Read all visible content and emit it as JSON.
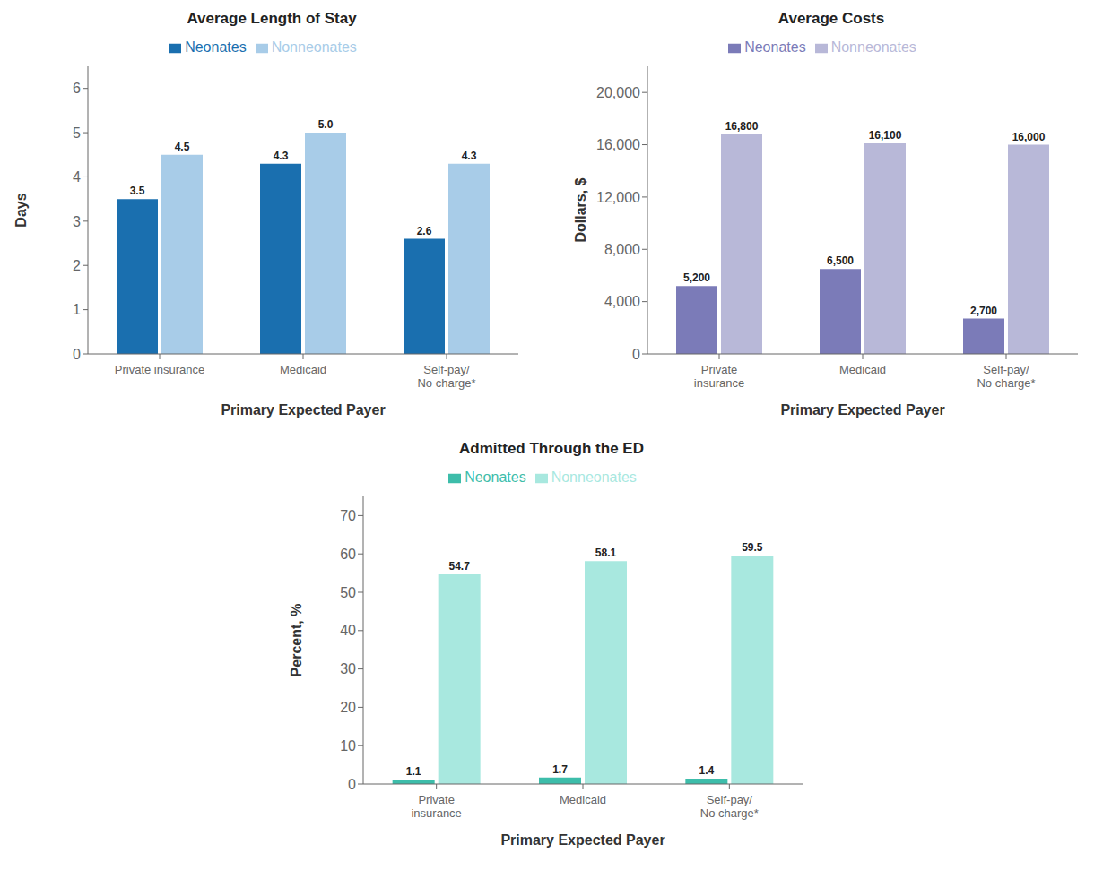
{
  "chart_data": [
    {
      "type": "bar",
      "title": "Average Length of Stay",
      "ylabel": "Days",
      "xlabel": "Primary Expected Payer",
      "categories": [
        "Private insurance",
        "Medicaid",
        "Self-pay/\nNo charge*"
      ],
      "series": [
        {
          "name": "Neonates",
          "color": "#1a6faf",
          "values": [
            3.5,
            4.3,
            2.6
          ],
          "value_labels": [
            "3.5",
            "4.3",
            "2.6"
          ]
        },
        {
          "name": "Nonneonates",
          "color": "#a8cce8",
          "values": [
            4.5,
            5.0,
            4.3
          ],
          "value_labels": [
            "4.5",
            "5.0",
            "4.3"
          ]
        }
      ],
      "ylim": [
        0,
        6.5
      ],
      "yticks": [
        0,
        1,
        2,
        3,
        4,
        5,
        6
      ],
      "grid": false,
      "legend": "top",
      "data_labels": true
    },
    {
      "type": "bar",
      "title": "Average Costs",
      "ylabel": "Dollars, $",
      "xlabel": "Primary Expected Payer",
      "categories": [
        "Private\ninsurance",
        "Medicaid",
        "Self-pay/\nNo charge*"
      ],
      "series": [
        {
          "name": "Neonates",
          "color": "#7b7bb8",
          "values": [
            5200,
            6500,
            2700
          ],
          "value_labels": [
            "5,200",
            "6,500",
            "2,700"
          ]
        },
        {
          "name": "Nonneonates",
          "color": "#b8b8d8",
          "values": [
            16800,
            16100,
            16000
          ],
          "value_labels": [
            "16,800",
            "16,100",
            "16,000"
          ]
        }
      ],
      "ylim": [
        0,
        22000
      ],
      "yticks": [
        0,
        {
          "value": 4000,
          "label": "4,000"
        },
        {
          "value": 8000,
          "label": "8,000"
        },
        {
          "value": 12000,
          "label": "12,000"
        },
        {
          "value": 16000,
          "label": "16,000"
        },
        {
          "value": 20000,
          "label": "20,000"
        }
      ],
      "grid": false,
      "legend": "top",
      "data_labels": true
    },
    {
      "type": "bar",
      "title": "Admitted Through the ED",
      "ylabel": "Percent, %",
      "xlabel": "Primary Expected Payer",
      "categories": [
        "Private\ninsurance",
        "Medicaid",
        "Self-pay/\nNo charge*"
      ],
      "series": [
        {
          "name": "Neonates",
          "color": "#3dbdaa",
          "values": [
            1.1,
            1.7,
            1.4
          ],
          "value_labels": [
            "1.1",
            "1.7",
            "1.4"
          ]
        },
        {
          "name": "Nonneonates",
          "color": "#a8e8df",
          "values": [
            54.7,
            58.1,
            59.5
          ],
          "value_labels": [
            "54.7",
            "58.1",
            "59.5"
          ]
        }
      ],
      "ylim": [
        0,
        75
      ],
      "yticks": [
        0,
        10,
        20,
        30,
        40,
        50,
        60,
        70
      ],
      "grid": false,
      "legend": "top",
      "data_labels": true
    }
  ]
}
